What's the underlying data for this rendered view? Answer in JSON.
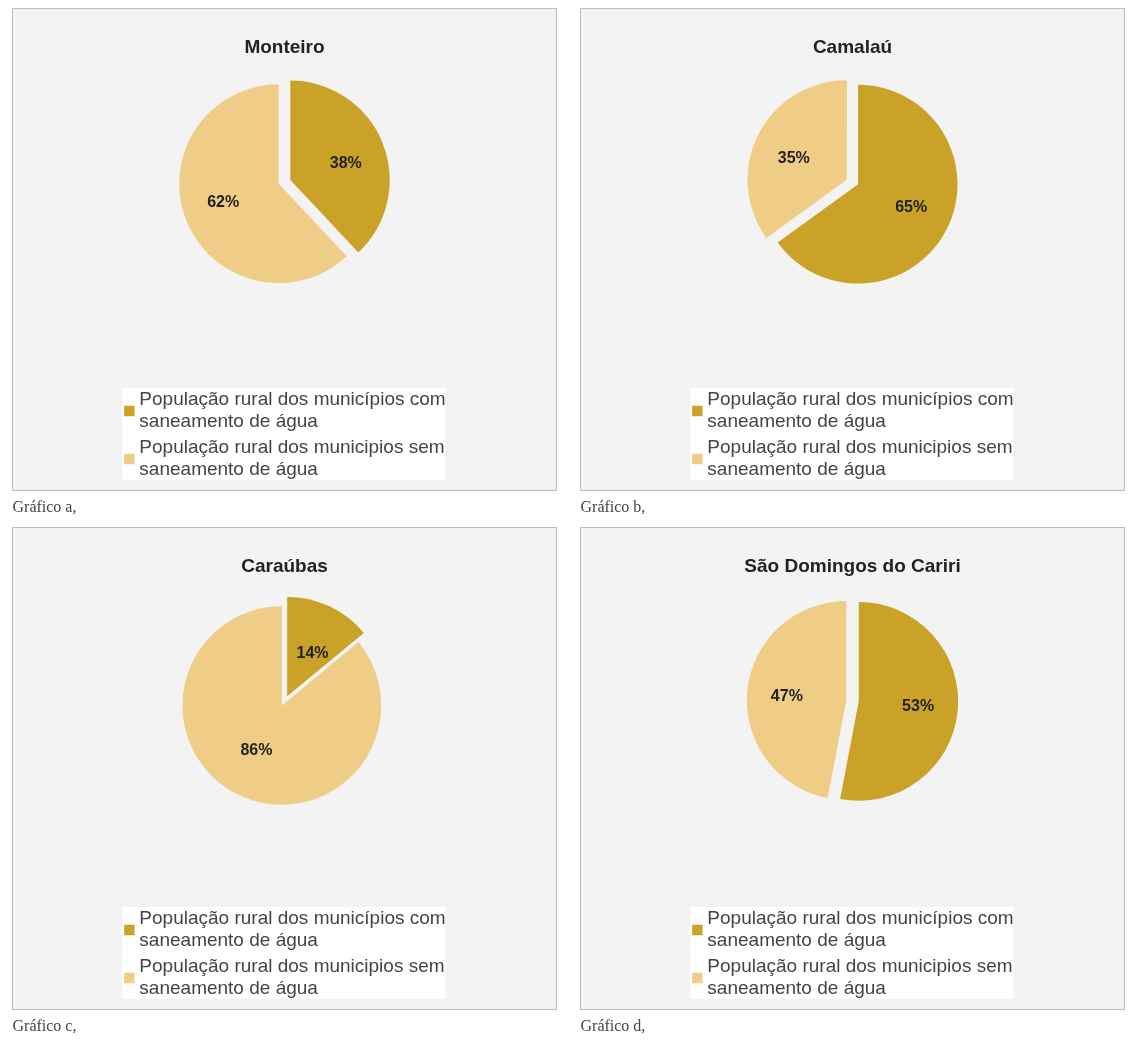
{
  "chart_data": [
    {
      "type": "pie",
      "title": "Monteiro",
      "categories": [
        "População rural dos municípios com saneamento de água",
        "População rural dos municipios sem saneamento de água"
      ],
      "values": [
        38,
        62
      ],
      "colors": [
        "#c9a227",
        "#f0cd86"
      ],
      "value_labels": [
        "38%",
        "62%"
      ],
      "legend": "bottom",
      "annotations": [
        "Gráfico a,"
      ]
    },
    {
      "type": "pie",
      "title": "Camalaú",
      "categories": [
        "População rural dos municípios com saneamento de água",
        "População rural dos municipios sem saneamento de água"
      ],
      "values": [
        65,
        35
      ],
      "colors": [
        "#c9a227",
        "#f0cd86"
      ],
      "value_labels": [
        "65%",
        "35%"
      ],
      "legend": "bottom",
      "annotations": [
        "Gráfico b,"
      ]
    },
    {
      "type": "pie",
      "title": "Caraúbas",
      "categories": [
        "População rural dos municípios com saneamento de água",
        "População rural dos municipios sem saneamento de água"
      ],
      "values": [
        14,
        86
      ],
      "colors": [
        "#c9a227",
        "#f0cd86"
      ],
      "value_labels": [
        "14%",
        "86%"
      ],
      "legend": "bottom",
      "annotations": [
        "Gráfico c,"
      ]
    },
    {
      "type": "pie",
      "title": "São Domingos do Cariri",
      "categories": [
        "População rural dos municípios com saneamento de água",
        "População rural dos municipios sem saneamento de água"
      ],
      "values": [
        53,
        47
      ],
      "colors": [
        "#c9a227",
        "#f0cd86"
      ],
      "value_labels": [
        "53%",
        "47%"
      ],
      "legend": "bottom",
      "annotations": [
        "Gráfico d,"
      ]
    }
  ]
}
